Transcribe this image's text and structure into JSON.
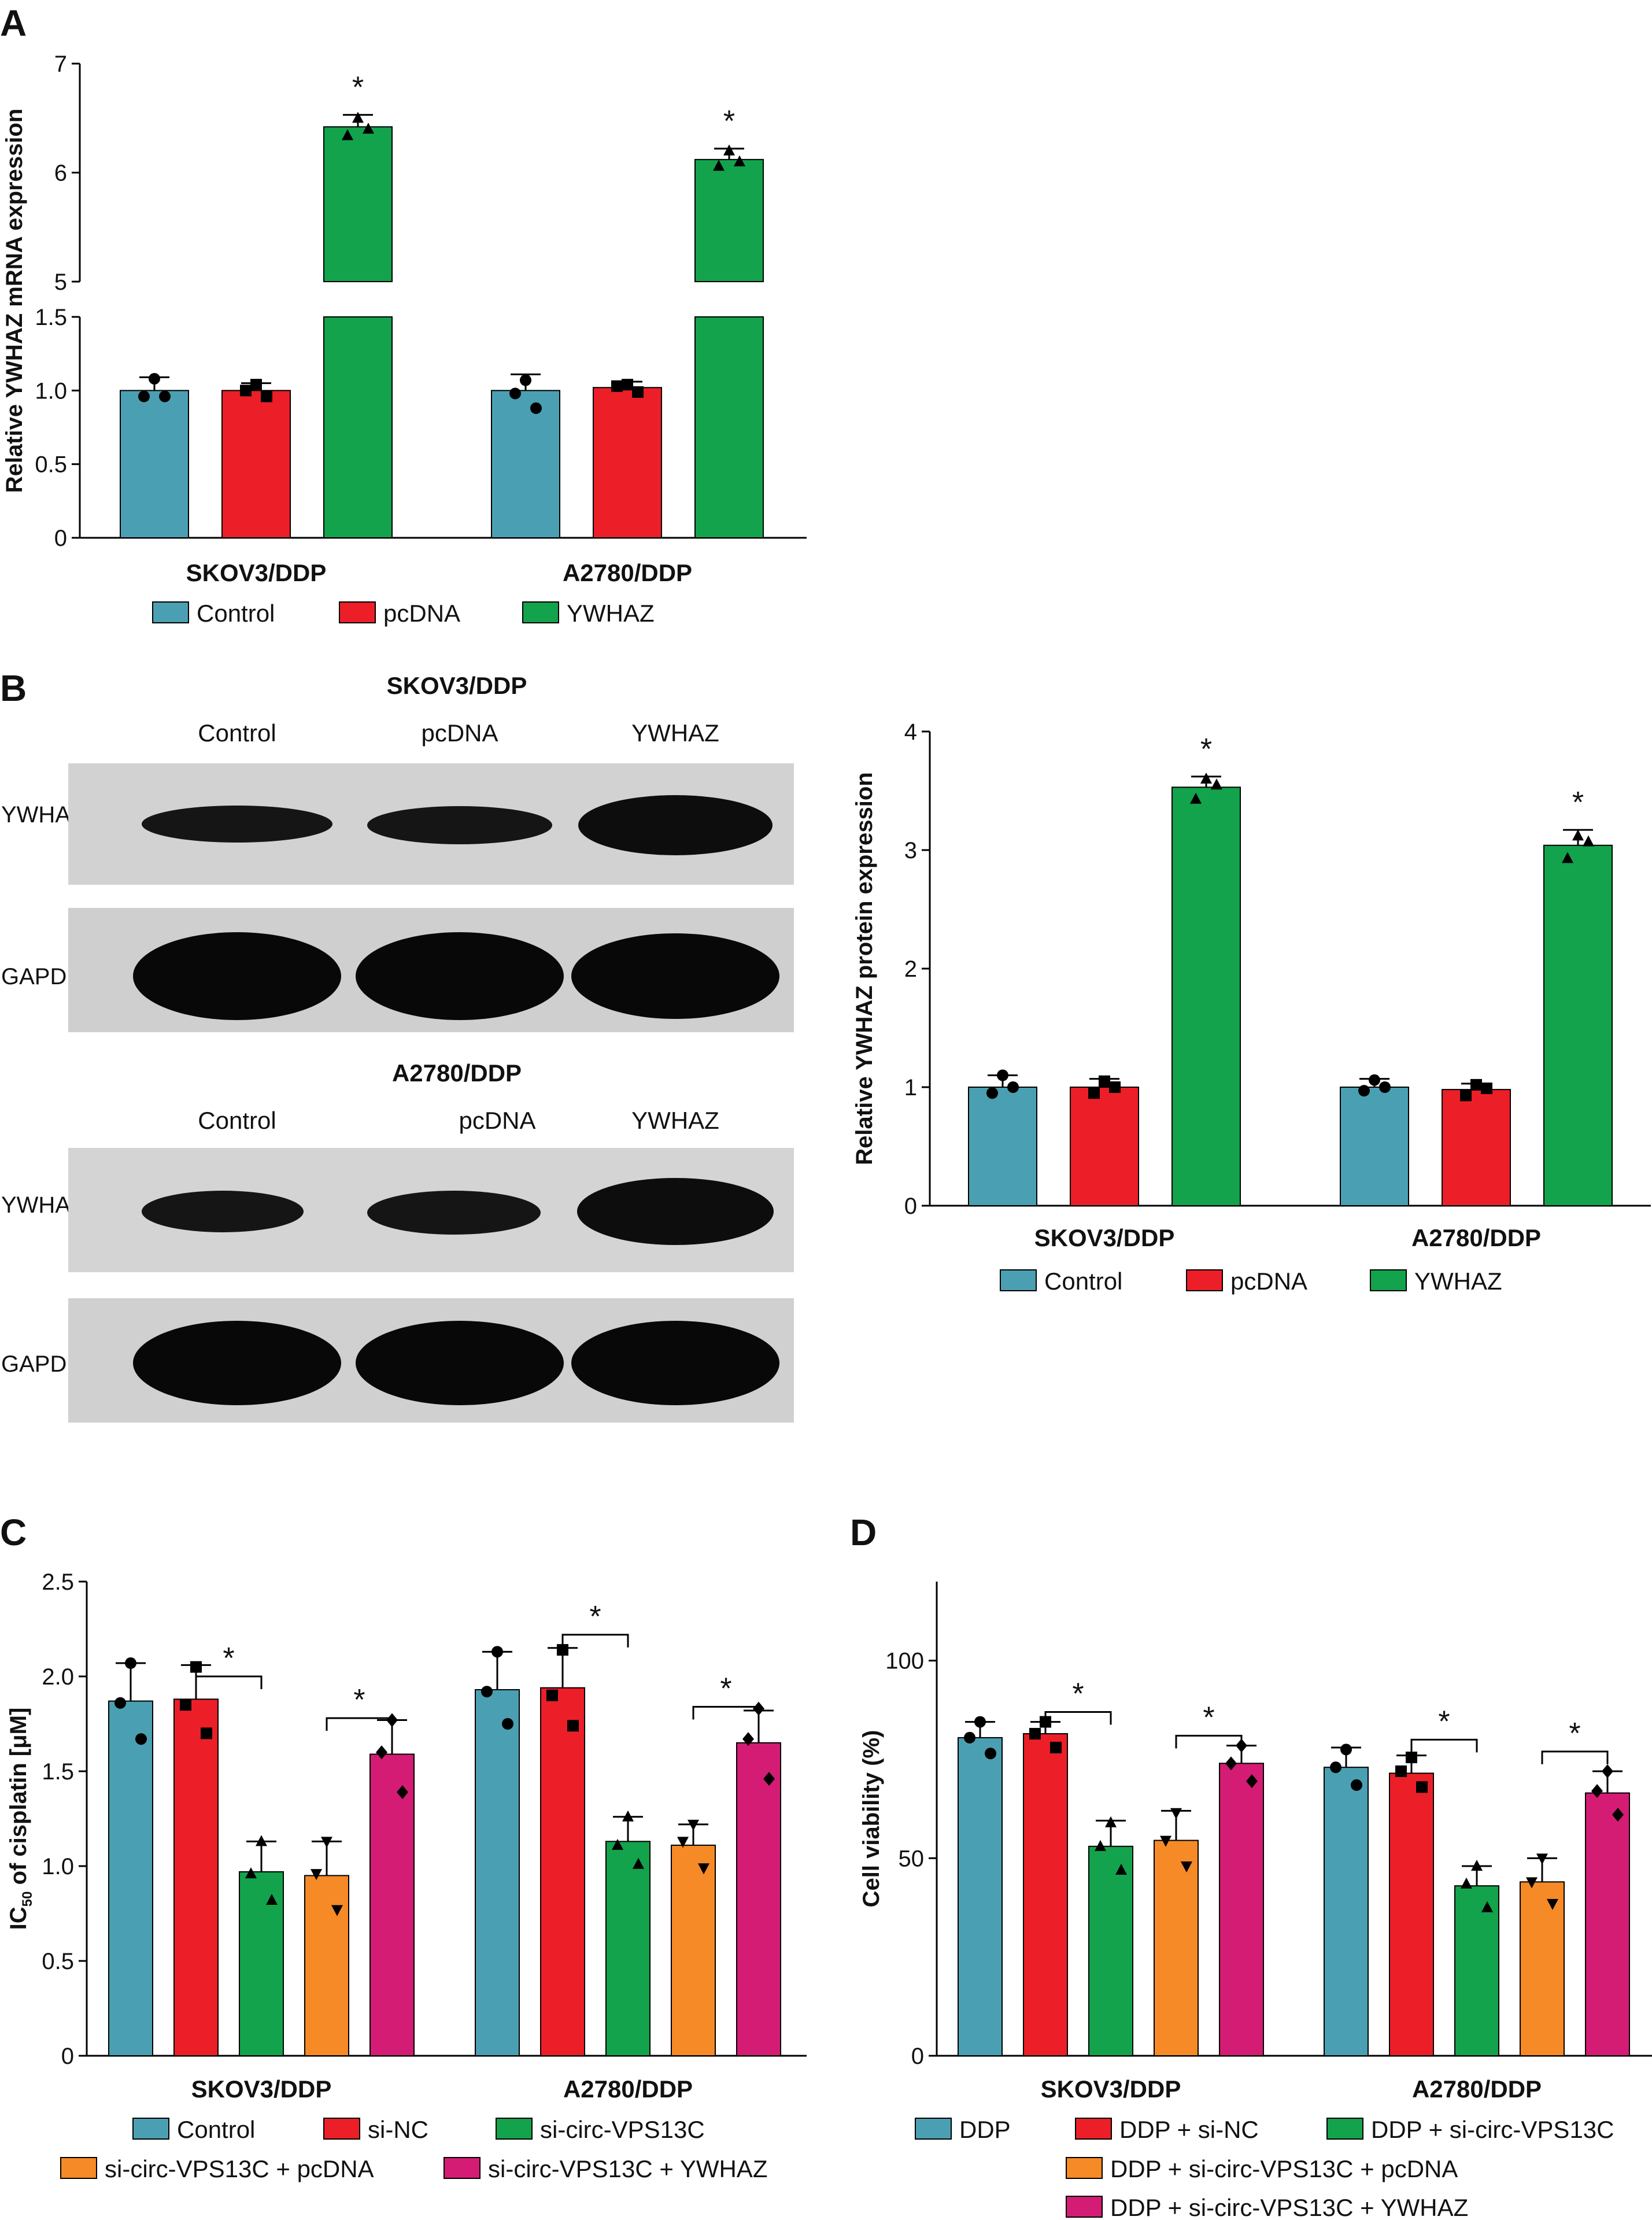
{
  "colors": {
    "teal": "#4aa0b2",
    "red": "#ec1f28",
    "green": "#13a34c",
    "orange": "#f58a26",
    "magenta": "#d41c74"
  },
  "panel_labels": {
    "a": "A",
    "b": "B",
    "c": "C",
    "d": "D"
  },
  "blots": {
    "top": {
      "title": "SKOV3/DDP",
      "lanes": [
        "Control",
        "pcDNA",
        "YWHAZ"
      ],
      "rows": [
        "YWHAZ",
        "GAPDH"
      ]
    },
    "bottom": {
      "title": "A2780/DDP",
      "lanes": [
        "Control",
        "pcDNA",
        "YWHAZ"
      ],
      "rows": [
        "YWHAZ",
        "GAPDH"
      ]
    }
  },
  "chart_data": [
    {
      "id": "A",
      "type": "bar",
      "ylabel": "Relative YWHAZ mRNA expression",
      "broken_axis": true,
      "ylim_lower": [
        0,
        1.5
      ],
      "ylim_upper": [
        5,
        7
      ],
      "yticks_lower": [
        "0",
        "0.5",
        "1.0",
        "1.5"
      ],
      "yticks_upper": [
        "5",
        "6",
        "7"
      ],
      "categories": [
        "SKOV3/DDP",
        "A2780/DDP"
      ],
      "series": [
        {
          "name": "Control",
          "color": "teal",
          "marker": "circle",
          "values": [
            1.0,
            1.0
          ],
          "errors": [
            0.09,
            0.11
          ],
          "points": [
            [
              1.08,
              0.96,
              0.96
            ],
            [
              1.07,
              0.98,
              0.88
            ]
          ]
        },
        {
          "name": "pcDNA",
          "color": "red",
          "marker": "square",
          "values": [
            1.0,
            1.02
          ],
          "errors": [
            0.05,
            0.04
          ],
          "points": [
            [
              1.04,
              1.0,
              0.96
            ],
            [
              1.04,
              1.03,
              0.99
            ]
          ]
        },
        {
          "name": "YWHAZ",
          "color": "green",
          "marker": "triangle",
          "values": [
            6.42,
            6.12
          ],
          "errors": [
            0.11,
            0.1
          ],
          "points": [
            [
              6.5,
              6.34,
              6.4
            ],
            [
              6.2,
              6.06,
              6.1
            ]
          ]
        }
      ],
      "annotations": [
        {
          "text": "*",
          "category": 0,
          "series": 2
        },
        {
          "text": "*",
          "category": 1,
          "series": 2
        }
      ]
    },
    {
      "id": "B",
      "type": "bar",
      "ylabel": "Relative YWHAZ protein expression",
      "ylim": [
        0,
        4
      ],
      "yticks": [
        "0",
        "1",
        "2",
        "3",
        "4"
      ],
      "categories": [
        "SKOV3/DDP",
        "A2780/DDP"
      ],
      "series": [
        {
          "name": "Control",
          "color": "teal",
          "marker": "circle",
          "values": [
            1.0,
            1.0
          ],
          "errors": [
            0.1,
            0.07
          ],
          "points": [
            [
              1.1,
              0.95,
              1.0
            ],
            [
              1.06,
              0.97,
              1.0
            ]
          ]
        },
        {
          "name": "pcDNA",
          "color": "red",
          "marker": "square",
          "values": [
            1.0,
            0.98
          ],
          "errors": [
            0.07,
            0.05
          ],
          "points": [
            [
              1.05,
              0.95,
              1.0
            ],
            [
              1.02,
              0.93,
              0.99
            ]
          ]
        },
        {
          "name": "YWHAZ",
          "color": "green",
          "marker": "triangle",
          "values": [
            3.53,
            3.04
          ],
          "errors": [
            0.09,
            0.13
          ],
          "points": [
            [
              3.6,
              3.43,
              3.55
            ],
            [
              3.12,
              2.93,
              3.07
            ]
          ]
        }
      ],
      "annotations": [
        {
          "text": "*",
          "category": 0,
          "series": 2
        },
        {
          "text": "*",
          "category": 1,
          "series": 2
        }
      ]
    },
    {
      "id": "C",
      "type": "bar",
      "ylabel_prefix": "IC",
      "ylabel_sub": "50",
      "ylabel_suffix": " of cisplatin [μM]",
      "ylim": [
        0,
        2.5
      ],
      "yticks": [
        "0",
        "0.5",
        "1.0",
        "1.5",
        "2.0",
        "2.5"
      ],
      "categories": [
        "SKOV3/DDP",
        "A2780/DDP"
      ],
      "series": [
        {
          "name": "Control",
          "color": "teal",
          "marker": "circle",
          "values": [
            1.87,
            1.93
          ],
          "errors": [
            0.2,
            0.2
          ],
          "points": [
            [
              2.07,
              1.86,
              1.67
            ],
            [
              2.13,
              1.92,
              1.75
            ]
          ]
        },
        {
          "name": "si-NC",
          "color": "red",
          "marker": "square",
          "values": [
            1.88,
            1.94
          ],
          "errors": [
            0.18,
            0.21
          ],
          "points": [
            [
              2.05,
              1.85,
              1.7
            ],
            [
              2.14,
              1.9,
              1.74
            ]
          ]
        },
        {
          "name": "si-circ-VPS13C",
          "color": "green",
          "marker": "triangle",
          "values": [
            0.97,
            1.13
          ],
          "errors": [
            0.16,
            0.13
          ],
          "points": [
            [
              1.13,
              0.96,
              0.82
            ],
            [
              1.26,
              1.11,
              1.01
            ]
          ]
        },
        {
          "name": "si-circ-VPS13C + pcDNA",
          "color": "orange",
          "marker": "triangle-down",
          "values": [
            0.95,
            1.11
          ],
          "errors": [
            0.18,
            0.11
          ],
          "points": [
            [
              1.13,
              0.96,
              0.77
            ],
            [
              1.22,
              1.13,
              0.99
            ]
          ]
        },
        {
          "name": "si-circ-VPS13C + YWHAZ",
          "color": "magenta",
          "marker": "diamond",
          "values": [
            1.59,
            1.65
          ],
          "errors": [
            0.18,
            0.17
          ],
          "points": [
            [
              1.77,
              1.6,
              1.39
            ],
            [
              1.83,
              1.67,
              1.46
            ]
          ]
        }
      ],
      "brackets": [
        {
          "text": "*",
          "category": 0,
          "from": 1,
          "to": 2,
          "y": 2.0
        },
        {
          "text": "*",
          "category": 0,
          "from": 3,
          "to": 4,
          "y": 1.78
        },
        {
          "text": "*",
          "category": 1,
          "from": 1,
          "to": 2,
          "y": 2.22
        },
        {
          "text": "*",
          "category": 1,
          "from": 3,
          "to": 4,
          "y": 1.84
        }
      ]
    },
    {
      "id": "D",
      "type": "bar",
      "ylabel": "Cell viability (%)",
      "ylim": [
        0,
        120
      ],
      "yticks": [
        "0",
        "50",
        "100"
      ],
      "ytick_values": [
        0,
        50,
        100
      ],
      "categories": [
        "SKOV3/DDP",
        "A2780/DDP"
      ],
      "series": [
        {
          "name": "DDP",
          "color": "teal",
          "marker": "circle",
          "values": [
            80.5,
            73.0
          ],
          "errors": [
            4,
            5
          ],
          "points": [
            [
              84.5,
              80.5,
              76.5
            ],
            [
              77.5,
              73.0,
              68.5
            ]
          ]
        },
        {
          "name": "DDP + si-NC",
          "color": "red",
          "marker": "square",
          "values": [
            81.5,
            71.5
          ],
          "errors": [
            3,
            4.5
          ],
          "points": [
            [
              84.5,
              81.5,
              78.0
            ],
            [
              75.5,
              72.0,
              68.0
            ]
          ]
        },
        {
          "name": "DDP + si-circ-VPS13C",
          "color": "green",
          "marker": "triangle",
          "values": [
            53.0,
            43.0
          ],
          "errors": [
            6.5,
            5
          ],
          "points": [
            [
              59.0,
              53.0,
              47.0
            ],
            [
              48.0,
              43.5,
              37.5
            ]
          ]
        },
        {
          "name": "DDP + si-circ-VPS13C + pcDNA",
          "color": "orange",
          "marker": "triangle-down",
          "values": [
            54.5,
            44.0
          ],
          "errors": [
            7.5,
            6
          ],
          "points": [
            [
              61.5,
              54.5,
              48.0
            ],
            [
              50.0,
              44.0,
              38.5
            ]
          ]
        },
        {
          "name": "DDP + si-circ-VPS13C + YWHAZ",
          "color": "magenta",
          "marker": "diamond",
          "values": [
            74.0,
            66.5
          ],
          "errors": [
            4.5,
            5.5
          ],
          "points": [
            [
              78.5,
              74.0,
              69.5
            ],
            [
              72.0,
              67.0,
              61.0
            ]
          ]
        }
      ],
      "brackets": [
        {
          "text": "*",
          "category": 0,
          "from": 1,
          "to": 2,
          "y": 87
        },
        {
          "text": "*",
          "category": 0,
          "from": 3,
          "to": 4,
          "y": 81
        },
        {
          "text": "*",
          "category": 1,
          "from": 1,
          "to": 2,
          "y": 80
        },
        {
          "text": "*",
          "category": 1,
          "from": 3,
          "to": 4,
          "y": 77
        }
      ]
    }
  ]
}
